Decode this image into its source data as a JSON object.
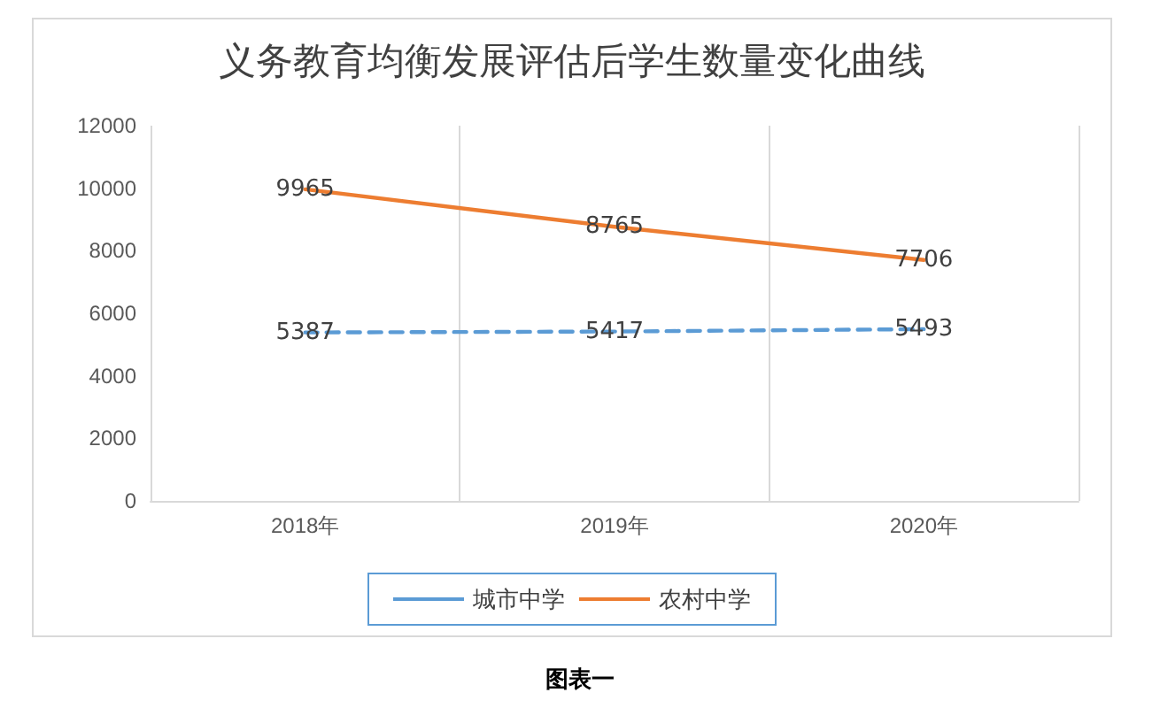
{
  "chart_data": {
    "type": "line",
    "title": "义务教育均衡发展评估后学生数量变化曲线",
    "categories": [
      "2018年",
      "2019年",
      "2020年"
    ],
    "series": [
      {
        "name": "城市中学",
        "color": "#5b9bd5",
        "values": [
          5387,
          5417,
          5493
        ],
        "line_style": "dashed"
      },
      {
        "name": "农村中学",
        "color": "#ed7d31",
        "values": [
          9965,
          8765,
          7706
        ],
        "line_style": "solid"
      }
    ],
    "ylim": [
      0,
      12000
    ],
    "yticks": [
      0,
      2000,
      4000,
      6000,
      8000,
      10000,
      12000
    ],
    "grid": "x",
    "legend": "bottom",
    "marker": "none",
    "data_labels": true,
    "annotations": [
      "图表一"
    ]
  }
}
